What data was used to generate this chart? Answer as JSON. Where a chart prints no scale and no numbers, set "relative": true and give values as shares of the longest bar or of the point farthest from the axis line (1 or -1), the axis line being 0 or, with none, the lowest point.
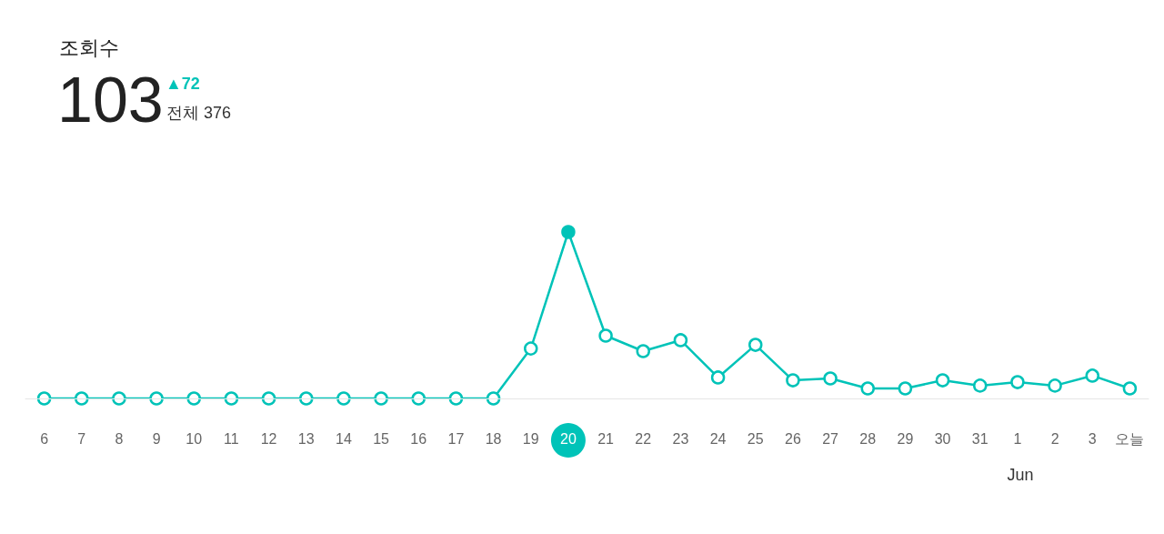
{
  "chart_data": {
    "type": "line",
    "title": "조회수",
    "subtitle": "103",
    "annotations": [
      "▲72",
      "전체 376",
      "Jun"
    ],
    "categories": [
      "6",
      "7",
      "8",
      "9",
      "10",
      "11",
      "12",
      "13",
      "14",
      "15",
      "16",
      "17",
      "18",
      "19",
      "20",
      "21",
      "22",
      "23",
      "24",
      "25",
      "26",
      "27",
      "28",
      "29",
      "30",
      "31",
      "1",
      "2",
      "3",
      "오늘"
    ],
    "series": [
      {
        "color": "#00c3b8",
        "values": [
          0,
          0,
          0,
          0,
          0,
          0,
          0,
          0,
          0,
          0,
          0,
          0,
          0,
          0.3,
          1,
          0.377,
          0.284,
          0.35,
          0.126,
          0.322,
          0.109,
          0.12,
          0.06,
          0.06,
          0.109,
          0.077,
          0.098,
          0.077,
          0.137,
          0.06
        ]
      }
    ],
    "relative": true,
    "grid": false,
    "marker": "circle",
    "line_style": "solid"
  }
}
